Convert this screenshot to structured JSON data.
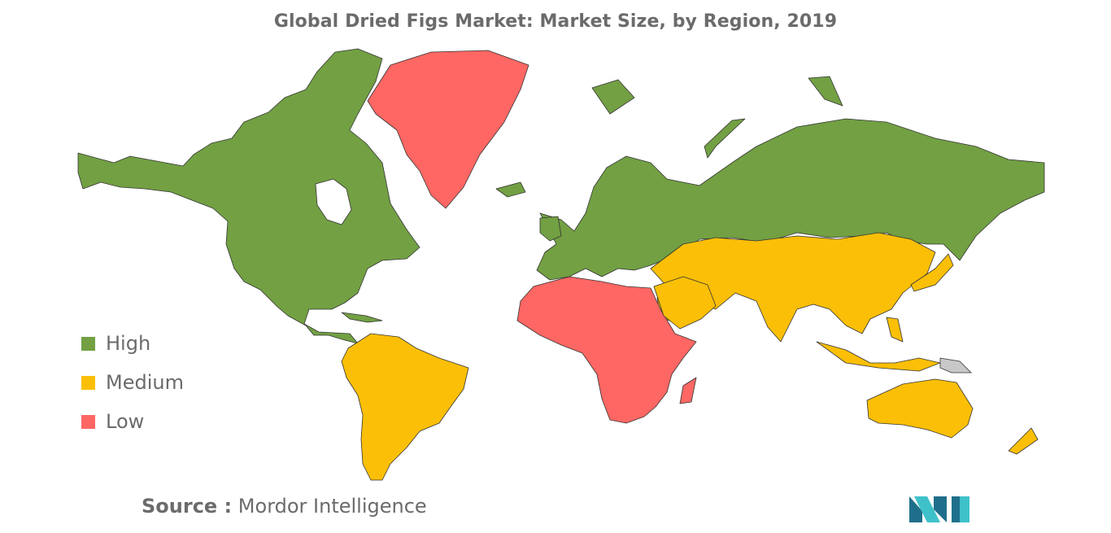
{
  "title": "Global Dried Figs Market: Market Size, by Region, 2019",
  "legend": [
    {
      "label": "High",
      "color": "#72a043"
    },
    {
      "label": "Medium",
      "color": "#fbbf07"
    },
    {
      "label": "Low",
      "color": "#fe6763"
    }
  ],
  "no_data_color": "#c8c8c8",
  "regions": [
    {
      "name": "North America",
      "level": "High"
    },
    {
      "name": "Europe",
      "level": "High"
    },
    {
      "name": "Russia",
      "level": "High"
    },
    {
      "name": "South America",
      "level": "Medium"
    },
    {
      "name": "Asia-Pacific",
      "level": "Medium"
    },
    {
      "name": "Middle East",
      "level": "Medium"
    },
    {
      "name": "Australia",
      "level": "Medium"
    },
    {
      "name": "Greenland",
      "level": "Low"
    },
    {
      "name": "Africa",
      "level": "Low"
    }
  ],
  "source": {
    "prefix": "Source :",
    "text": "Mordor Intelligence"
  }
}
